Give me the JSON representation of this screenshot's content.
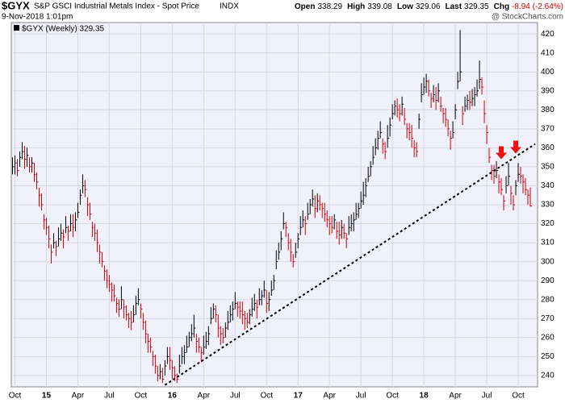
{
  "chart_data": {
    "type": "hlc-bar",
    "symbol": "$GYX",
    "title": "S&P GSCI Industrial Metals Index - Spot Price",
    "exchange": "INDX",
    "date": "9-Nov-2018 1:01pm",
    "quotes": [
      {
        "label": "Open",
        "value": 338.29
      },
      {
        "label": "High",
        "value": 339.08
      },
      {
        "label": "Low",
        "value": 329.06
      },
      {
        "label": "Last",
        "value": 329.35
      },
      {
        "label": "Chg",
        "value": "-8.94 (-2.64%)"
      }
    ],
    "watermark": "@ StockCharts.com",
    "legend": "$GYX (Weekly) 329.35",
    "high": [
      355,
      356,
      354,
      358,
      363,
      361,
      360,
      355,
      355,
      352,
      347,
      339,
      336,
      325,
      323,
      319,
      309,
      315,
      311,
      318,
      320,
      317,
      324,
      319,
      325,
      325,
      326,
      331,
      338,
      346,
      343,
      334,
      331,
      321,
      320,
      317,
      309,
      305,
      298,
      296,
      293,
      289,
      288,
      281,
      280,
      287,
      280,
      277,
      273,
      274,
      277,
      282,
      286,
      278,
      273,
      269,
      262,
      260,
      253,
      251,
      245,
      246,
      244,
      248,
      255,
      255,
      248,
      245,
      241,
      251,
      255,
      256,
      261,
      263,
      267,
      272,
      262,
      260,
      255,
      261,
      263,
      266,
      276,
      278,
      277,
      272,
      266,
      265,
      268,
      274,
      277,
      279,
      284,
      279,
      279,
      279,
      274,
      273,
      275,
      281,
      283,
      280,
      286,
      285,
      290,
      285,
      284,
      290,
      293,
      306,
      310,
      316,
      326,
      321,
      315,
      312,
      304,
      310,
      315,
      324,
      327,
      324,
      331,
      333,
      338,
      335,
      336,
      335,
      331,
      331,
      327,
      324,
      324,
      325,
      321,
      321,
      322,
      320,
      315,
      324,
      325,
      326,
      331,
      331,
      337,
      342,
      344,
      350,
      353,
      361,
      365,
      369,
      374,
      365,
      363,
      372,
      376,
      383,
      385,
      386,
      383,
      387,
      381,
      373,
      373,
      372,
      364,
      363,
      378,
      394,
      397,
      399,
      396,
      389,
      393,
      392,
      394,
      387,
      381,
      381,
      375,
      369,
      374,
      383,
      400,
      422,
      382,
      387,
      388,
      390,
      391,
      392,
      396,
      406,
      397,
      385,
      372,
      360,
      351,
      351,
      353,
      346,
      344,
      335,
      345,
      352,
      340,
      335,
      343,
      352,
      350,
      346,
      344,
      338,
      339.08
    ],
    "low": [
      346,
      346,
      345,
      350,
      354,
      349,
      350,
      347,
      347,
      342,
      338,
      329,
      327,
      317,
      314,
      307,
      299,
      307,
      303,
      308,
      311,
      307,
      315,
      311,
      316,
      313,
      316,
      323,
      330,
      336,
      334,
      324,
      322,
      313,
      311,
      305,
      299,
      297,
      290,
      286,
      284,
      279,
      279,
      273,
      271,
      275,
      270,
      269,
      265,
      264,
      268,
      272,
      277,
      270,
      264,
      257,
      252,
      252,
      245,
      241,
      237,
      238,
      236,
      240,
      246,
      243,
      238,
      237,
      236,
      241,
      246,
      246,
      252,
      255,
      258,
      260,
      252,
      252,
      247,
      251,
      254,
      256,
      267,
      270,
      268,
      260,
      256,
      257,
      260,
      264,
      268,
      269,
      275,
      271,
      270,
      267,
      264,
      265,
      267,
      271,
      274,
      270,
      277,
      277,
      281,
      273,
      274,
      282,
      285,
      296,
      301,
      306,
      317,
      313,
      306,
      300,
      297,
      302,
      307,
      314,
      318,
      314,
      322,
      325,
      329,
      323,
      326,
      327,
      323,
      321,
      318,
      314,
      315,
      317,
      312,
      309,
      312,
      312,
      307,
      314,
      316,
      316,
      322,
      323,
      328,
      330,
      334,
      342,
      345,
      351,
      356,
      359,
      365,
      357,
      354,
      360,
      366,
      375,
      377,
      376,
      374,
      377,
      372,
      365,
      364,
      360,
      355,
      355,
      370,
      384,
      388,
      389,
      387,
      381,
      384,
      380,
      384,
      379,
      373,
      371,
      366,
      359,
      365,
      375,
      391,
      395,
      372,
      379,
      380,
      380,
      382,
      382,
      387,
      391,
      388,
      373,
      362,
      352,
      343,
      341,
      344,
      336,
      335,
      327,
      336,
      340,
      330,
      327,
      335,
      342,
      341,
      336,
      335,
      330,
      329.06
    ],
    "close": [
      350,
      352,
      348,
      355,
      358,
      354,
      356,
      350,
      352,
      346,
      342,
      335,
      330,
      322,
      318,
      312,
      305,
      310,
      308,
      312,
      315,
      313,
      318,
      316,
      320,
      318,
      322,
      326,
      335,
      340,
      338,
      330,
      325,
      318,
      315,
      310,
      305,
      300,
      295,
      290,
      288,
      285,
      282,
      278,
      275,
      280,
      276,
      272,
      270,
      268,
      272,
      278,
      280,
      275,
      268,
      262,
      258,
      255,
      250,
      245,
      240,
      242,
      238,
      245,
      250,
      248,
      244,
      240,
      238,
      245,
      250,
      252,
      255,
      260,
      262,
      265,
      258,
      255,
      252,
      255,
      258,
      262,
      270,
      275,
      272,
      265,
      262,
      260,
      265,
      268,
      272,
      275,
      278,
      276,
      274,
      272,
      270,
      268,
      272,
      275,
      278,
      276,
      280,
      282,
      285,
      278,
      280,
      285,
      290,
      300,
      305,
      312,
      320,
      318,
      310,
      305,
      300,
      305,
      312,
      318,
      322,
      320,
      325,
      330,
      333,
      328,
      332,
      330,
      328,
      325,
      322,
      320,
      318,
      322,
      316,
      314,
      318,
      315,
      312,
      318,
      320,
      322,
      325,
      328,
      332,
      335,
      340,
      345,
      350,
      355,
      360,
      365,
      368,
      362,
      358,
      365,
      372,
      378,
      382,
      380,
      378,
      383,
      375,
      370,
      368,
      365,
      360,
      358,
      375,
      388,
      392,
      395,
      390,
      386,
      388,
      385,
      390,
      382,
      378,
      375,
      370,
      365,
      368,
      380,
      395,
      400,
      378,
      382,
      385,
      384,
      386,
      388,
      390,
      396,
      392,
      378,
      368,
      355,
      348,
      345,
      348,
      342,
      338,
      332,
      340,
      345,
      336,
      330,
      340,
      346,
      345,
      342,
      338,
      335,
      329.35
    ],
    "up_color": "#000000",
    "down_color": "#cc0000",
    "xlim": [
      -0.5,
      217
    ],
    "xticks": [
      {
        "value": 1,
        "label": "Oct"
      },
      {
        "value": 14,
        "label": "15"
      },
      {
        "value": 27,
        "label": "Apr"
      },
      {
        "value": 40,
        "label": "Jul"
      },
      {
        "value": 53,
        "label": "Oct"
      },
      {
        "value": 66,
        "label": "16"
      },
      {
        "value": 79,
        "label": "Apr"
      },
      {
        "value": 92,
        "label": "Jul"
      },
      {
        "value": 105,
        "label": "Oct"
      },
      {
        "value": 118,
        "label": "17"
      },
      {
        "value": 131,
        "label": "Apr"
      },
      {
        "value": 144,
        "label": "Jul"
      },
      {
        "value": 157,
        "label": "Oct"
      },
      {
        "value": 170,
        "label": "18"
      },
      {
        "value": 183,
        "label": "Apr"
      },
      {
        "value": 196,
        "label": "Jul"
      },
      {
        "value": 209,
        "label": "Oct"
      }
    ],
    "ylim": [
      234,
      426
    ],
    "yticks": [
      240,
      250,
      260,
      270,
      280,
      290,
      300,
      310,
      320,
      330,
      340,
      350,
      360,
      370,
      380,
      390,
      400,
      410,
      420
    ],
    "grid": true,
    "trendline": {
      "points": [
        [
          63,
          235
        ],
        [
          216,
          362
        ]
      ],
      "color": "#000000"
    },
    "arrows": [
      {
        "x": 202,
        "y": 354,
        "color": "#ee1111"
      },
      {
        "x": 208,
        "y": 357,
        "color": "#ee1111"
      }
    ]
  }
}
